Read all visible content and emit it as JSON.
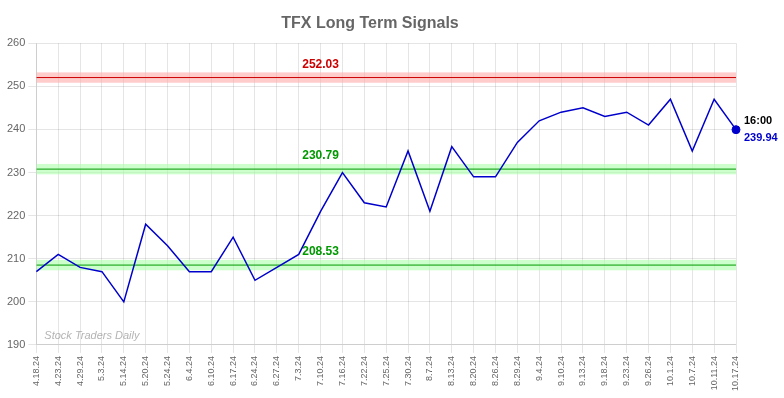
{
  "chart_data": {
    "type": "line",
    "title": "TFX Long Term Signals",
    "categories": [
      "4.18.24",
      "4.23.24",
      "4.29.24",
      "5.3.24",
      "5.14.24",
      "5.20.24",
      "5.24.24",
      "6.4.24",
      "6.10.24",
      "6.17.24",
      "6.24.24",
      "6.27.24",
      "7.3.24",
      "7.10.24",
      "7.16.24",
      "7.22.24",
      "7.25.24",
      "7.30.24",
      "8.7.24",
      "8.13.24",
      "8.20.24",
      "8.26.24",
      "8.29.24",
      "9.4.24",
      "9.10.24",
      "9.13.24",
      "9.18.24",
      "9.23.24",
      "9.26.24",
      "10.1.24",
      "10.7.24",
      "10.11.24",
      "10.17.24"
    ],
    "values": [
      207,
      211,
      208,
      207,
      200,
      218,
      213,
      207,
      207,
      215,
      205,
      208,
      211,
      221,
      230,
      223,
      222,
      235,
      221,
      236,
      229,
      229,
      237,
      242,
      244,
      245,
      243,
      244,
      241,
      247,
      235,
      247,
      239.94
    ],
    "color": "#0000cc",
    "ylim": [
      190,
      260
    ],
    "yticks": [
      190,
      200,
      210,
      220,
      230,
      240,
      250,
      260
    ],
    "grid": true,
    "annotations": [
      {
        "y": 252.03,
        "color": "#cc0000",
        "band": [
          250.83,
          253.23
        ],
        "band_color": "#ffaaaa"
      },
      {
        "y": 230.79,
        "color": "#009900",
        "band": [
          229.59,
          231.99
        ],
        "band_color": "#aaffaa"
      },
      {
        "y": 208.53,
        "color": "#009900",
        "band": [
          207.33,
          209.73
        ],
        "band_color": "#aaffaa"
      }
    ],
    "last_point": {
      "label": "16:00",
      "value": 239.94
    },
    "watermark": "Stock Traders Daily"
  }
}
